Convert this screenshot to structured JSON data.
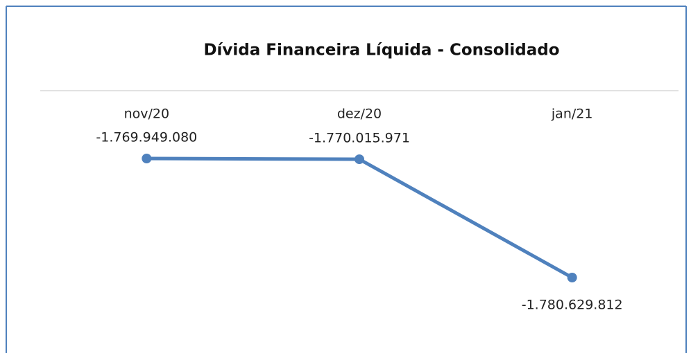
{
  "chart_data": {
    "type": "line",
    "title": "Dívida Financeira Líquida - Consolidado",
    "categories": [
      "nov/20",
      "dez/20",
      "jan/21"
    ],
    "values": [
      -1769949080,
      -1770015971,
      -1780629812
    ],
    "value_labels": [
      "-1.769.949.080",
      "-1.770.015.971",
      "-1.780.629.812"
    ],
    "color": "#4f81bd"
  }
}
